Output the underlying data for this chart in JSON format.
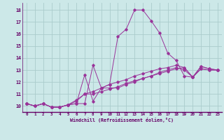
{
  "xlabel": "Windchill (Refroidissement éolien,°C)",
  "background_color": "#cce8e8",
  "grid_color": "#aacccc",
  "line_color": "#993399",
  "xmin": -0.5,
  "xmax": 23.5,
  "ymin": 9.5,
  "ymax": 18.6,
  "yticks": [
    10,
    11,
    12,
    13,
    14,
    15,
    16,
    17,
    18
  ],
  "xticks": [
    0,
    1,
    2,
    3,
    4,
    5,
    6,
    7,
    8,
    9,
    10,
    11,
    12,
    13,
    14,
    15,
    16,
    17,
    18,
    19,
    20,
    21,
    22,
    23
  ],
  "lines": [
    {
      "x": [
        0,
        1,
        2,
        3,
        4,
        5,
        6,
        7,
        8,
        9,
        10,
        11,
        12,
        13,
        14,
        15,
        16,
        17,
        18,
        19,
        20,
        21,
        22,
        23
      ],
      "y": [
        10.2,
        10.0,
        10.2,
        9.9,
        9.9,
        10.1,
        10.2,
        10.2,
        13.4,
        11.5,
        11.8,
        15.8,
        16.4,
        18.0,
        18.0,
        17.1,
        16.1,
        14.4,
        13.8,
        12.5,
        12.4,
        13.1,
        13.0,
        13.0
      ]
    },
    {
      "x": [
        0,
        1,
        2,
        3,
        4,
        5,
        6,
        7,
        8,
        9,
        10,
        11,
        12,
        13,
        14,
        15,
        16,
        17,
        18,
        19,
        20,
        21,
        22,
        23
      ],
      "y": [
        10.2,
        10.0,
        10.2,
        9.9,
        9.9,
        10.1,
        10.2,
        12.6,
        10.4,
        11.5,
        11.5,
        11.5,
        11.8,
        12.0,
        12.3,
        12.5,
        12.8,
        13.0,
        13.2,
        13.0,
        12.4,
        13.3,
        13.1,
        13.0
      ]
    },
    {
      "x": [
        0,
        1,
        2,
        3,
        4,
        5,
        6,
        7,
        8,
        9,
        10,
        11,
        12,
        13,
        14,
        15,
        16,
        17,
        18,
        19,
        20,
        21,
        22,
        23
      ],
      "y": [
        10.2,
        10.0,
        10.2,
        9.9,
        9.9,
        10.1,
        10.4,
        11.0,
        11.2,
        11.5,
        11.8,
        12.0,
        12.2,
        12.5,
        12.7,
        12.9,
        13.1,
        13.2,
        13.4,
        13.2,
        12.4,
        13.3,
        13.1,
        13.0
      ]
    },
    {
      "x": [
        0,
        1,
        2,
        3,
        4,
        5,
        6,
        7,
        8,
        9,
        10,
        11,
        12,
        13,
        14,
        15,
        16,
        17,
        18,
        19,
        20,
        21,
        22,
        23
      ],
      "y": [
        10.2,
        10.0,
        10.2,
        9.9,
        9.9,
        10.1,
        10.5,
        11.0,
        11.0,
        11.2,
        11.4,
        11.6,
        11.9,
        12.1,
        12.3,
        12.5,
        12.7,
        12.9,
        13.1,
        13.2,
        12.4,
        13.1,
        13.0,
        13.0
      ]
    }
  ]
}
